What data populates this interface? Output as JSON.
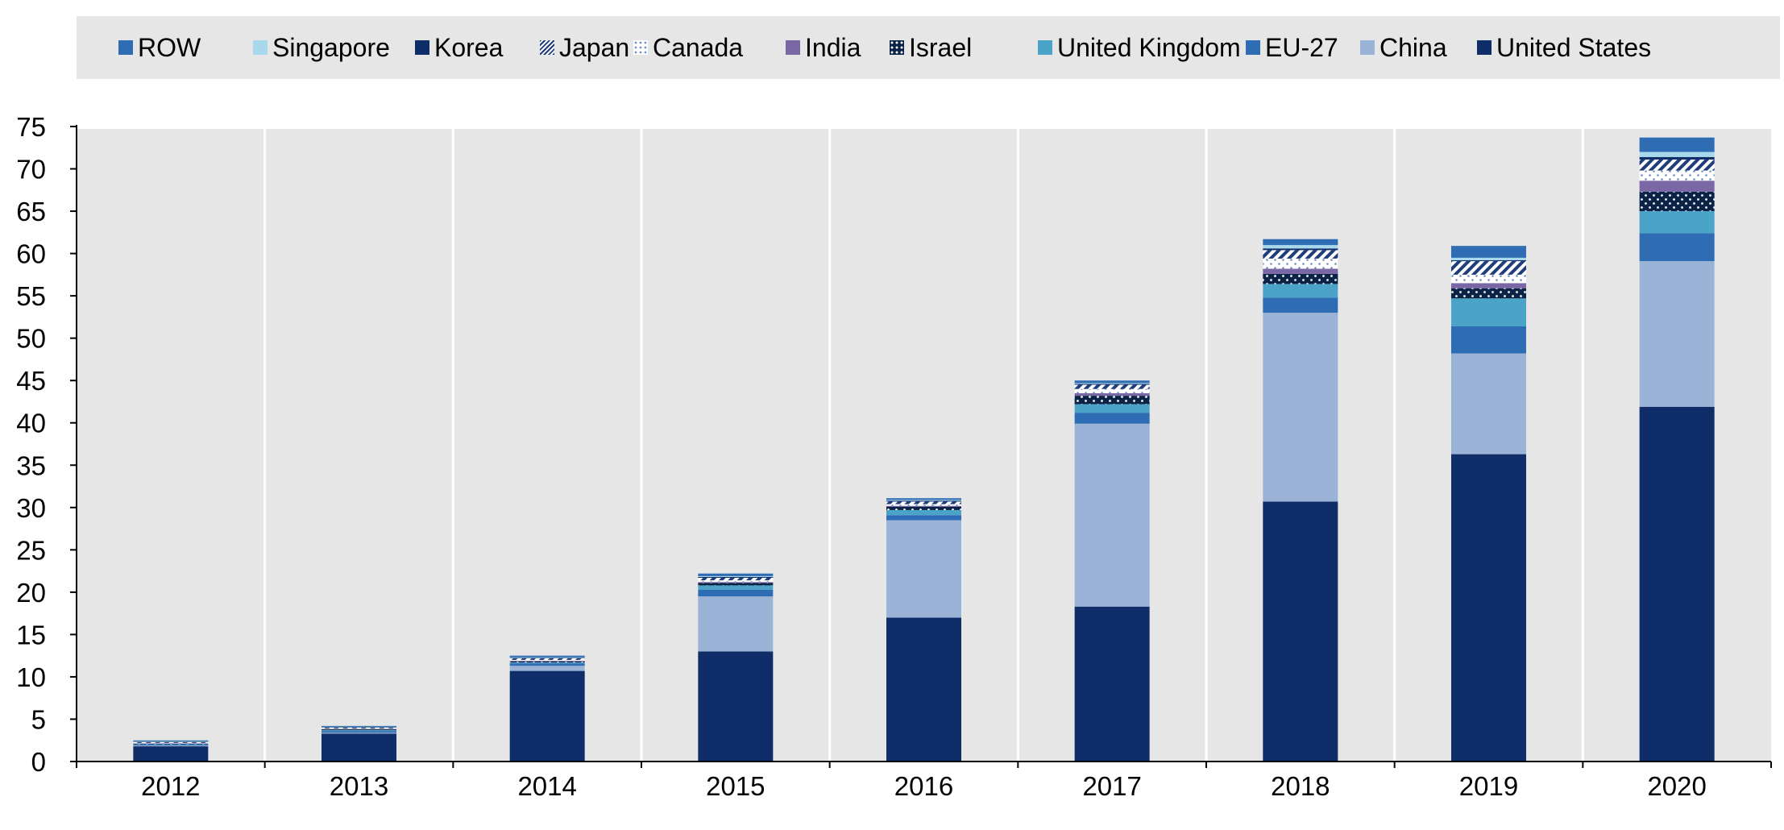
{
  "chart_data": {
    "type": "bar",
    "stacked": true,
    "categories": [
      "2012",
      "2013",
      "2014",
      "2015",
      "2016",
      "2017",
      "2018",
      "2019",
      "2020"
    ],
    "ylim": [
      0,
      75
    ],
    "yticks": [
      0,
      5,
      10,
      15,
      20,
      25,
      30,
      35,
      40,
      45,
      50,
      55,
      60,
      65,
      70,
      75
    ],
    "grid": "vertical",
    "legend_position": "top",
    "series": [
      {
        "name": "United States",
        "color": "#0f2d69",
        "pattern": "solid",
        "values": [
          1.8,
          3.3,
          10.7,
          13.0,
          17.0,
          18.3,
          30.7,
          36.3,
          41.9
        ]
      },
      {
        "name": "China",
        "color": "#9bb3d6",
        "pattern": "solid",
        "values": [
          0.1,
          0.1,
          0.6,
          6.5,
          11.5,
          21.6,
          22.3,
          11.9,
          17.2
        ]
      },
      {
        "name": "EU-27",
        "color": "#2e6db4",
        "pattern": "solid",
        "values": [
          0.1,
          0.2,
          0.3,
          0.8,
          0.6,
          1.3,
          1.8,
          3.2,
          3.3
        ]
      },
      {
        "name": "United Kingdom",
        "color": "#4ba3c8",
        "pattern": "solid",
        "values": [
          0.05,
          0.1,
          0.1,
          0.5,
          0.6,
          1.0,
          1.6,
          3.3,
          2.6
        ]
      },
      {
        "name": "Israel",
        "color": "#0c2348",
        "pattern": "dots",
        "values": [
          0.05,
          0.1,
          0.1,
          0.3,
          0.4,
          1.0,
          1.2,
          1.2,
          2.3
        ]
      },
      {
        "name": "India",
        "color": "#7a68a6",
        "pattern": "solid",
        "values": [
          0.05,
          0.05,
          0.1,
          0.1,
          0.1,
          0.3,
          0.6,
          0.6,
          1.3
        ]
      },
      {
        "name": "Canada",
        "color": "#c6d6ea",
        "pattern": "dots-light",
        "values": [
          0.05,
          0.05,
          0.1,
          0.2,
          0.2,
          0.5,
          1.2,
          1.0,
          1.2
        ]
      },
      {
        "name": "Japan",
        "color": "#1f3d7a",
        "pattern": "hatch",
        "values": [
          0.1,
          0.1,
          0.2,
          0.3,
          0.3,
          0.5,
          1.0,
          1.6,
          1.3
        ]
      },
      {
        "name": "Korea",
        "color": "#0f2d69",
        "pattern": "solid",
        "values": [
          0.05,
          0.05,
          0.05,
          0.1,
          0.1,
          0.1,
          0.2,
          0.1,
          0.3
        ]
      },
      {
        "name": "Singapore",
        "color": "#a8d8ec",
        "pattern": "solid",
        "values": [
          0.05,
          0.05,
          0.05,
          0.1,
          0.1,
          0.1,
          0.4,
          0.3,
          0.6
        ]
      },
      {
        "name": "ROW",
        "color": "#2e6db4",
        "pattern": "solid",
        "values": [
          0.1,
          0.1,
          0.2,
          0.3,
          0.2,
          0.3,
          0.7,
          1.4,
          1.7
        ]
      }
    ],
    "legend_order": [
      "ROW",
      "Singapore",
      "Korea",
      "Japan",
      "Canada",
      "India",
      "Israel",
      "United Kingdom",
      "EU-27",
      "China",
      "United States"
    ]
  }
}
